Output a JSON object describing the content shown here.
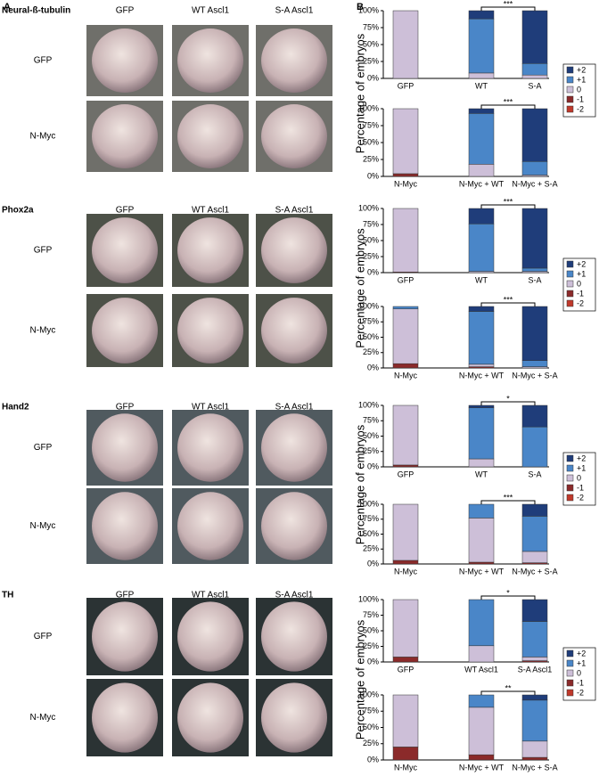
{
  "panel_a": {
    "label": "A",
    "sections": [
      {
        "title": "Neural-ß-tubulin",
        "columns": [
          "GFP",
          "WT Ascl1",
          "S-A Ascl1"
        ],
        "rows": [
          "GFP",
          "N-Myc"
        ]
      },
      {
        "title": "Phox2a",
        "columns": [
          "GFP",
          "WT Ascl1",
          "S-A Ascl1"
        ],
        "rows": [
          "GFP",
          "N-Myc"
        ]
      },
      {
        "title": "Hand2",
        "columns": [
          "GFP",
          "WT Ascl1",
          "S-A Ascl1"
        ],
        "rows": [
          "GFP",
          "N-Myc"
        ]
      },
      {
        "title": "TH",
        "columns": [
          "GFP",
          "WT Ascl1",
          "S-A Ascl1"
        ],
        "rows": [
          "GFP",
          "N-Myc"
        ]
      }
    ]
  },
  "panel_b": {
    "label": "B"
  },
  "chart_data": [
    {
      "type": "stacked-bar",
      "categories": [
        "GFP",
        "WT",
        "S-A"
      ],
      "ylabel": "Percentage of embryos",
      "annotation": "***",
      "legend": true,
      "ylim": [
        0,
        100
      ],
      "yticks": [
        {
          "value": 0,
          "label": "0%"
        },
        {
          "value": 25,
          "label": "25%"
        },
        {
          "value": 50,
          "label": "50%"
        },
        {
          "value": 75,
          "label": "75%"
        },
        {
          "value": 100,
          "label": "100%"
        }
      ],
      "series": [
        {
          "name": "-2",
          "color": "#c0392b",
          "values": [
            0,
            0,
            0
          ]
        },
        {
          "name": "-1",
          "color": "#8b2a2a",
          "values": [
            0,
            0,
            0
          ]
        },
        {
          "name": "0",
          "color": "#cdbfd8",
          "values": [
            100,
            8,
            5
          ]
        },
        {
          "name": "+1",
          "color": "#4a86c8",
          "values": [
            0,
            80,
            17
          ]
        },
        {
          "name": "+2",
          "color": "#1f3d7a",
          "values": [
            0,
            12,
            78
          ]
        }
      ]
    },
    {
      "type": "stacked-bar",
      "categories": [
        "N-Myc",
        "N-Myc + WT",
        "N-Myc + S-A"
      ],
      "annotation": "***",
      "ylim": [
        0,
        100
      ],
      "yticks": [
        {
          "value": 0,
          "label": "0%"
        },
        {
          "value": 25,
          "label": "25%"
        },
        {
          "value": 50,
          "label": "50%"
        },
        {
          "value": 75,
          "label": "75%"
        },
        {
          "value": 100,
          "label": "100%"
        }
      ],
      "series": [
        {
          "name": "-2",
          "color": "#c0392b",
          "values": [
            0,
            0,
            0
          ]
        },
        {
          "name": "-1",
          "color": "#8b2a2a",
          "values": [
            4,
            0,
            0
          ]
        },
        {
          "name": "0",
          "color": "#cdbfd8",
          "values": [
            96,
            18,
            2
          ]
        },
        {
          "name": "+1",
          "color": "#4a86c8",
          "values": [
            0,
            75,
            20
          ]
        },
        {
          "name": "+2",
          "color": "#1f3d7a",
          "values": [
            0,
            7,
            78
          ]
        }
      ]
    },
    {
      "type": "stacked-bar",
      "categories": [
        "GFP",
        "WT",
        "S-A"
      ],
      "ylabel": "Percentage of embryos",
      "annotation": "***",
      "legend": true,
      "ylim": [
        0,
        100
      ],
      "yticks": [
        {
          "value": 0,
          "label": "0%"
        },
        {
          "value": 25,
          "label": "25%"
        },
        {
          "value": 50,
          "label": "50%"
        },
        {
          "value": 75,
          "label": "75%"
        },
        {
          "value": 100,
          "label": "100%"
        }
      ],
      "series": [
        {
          "name": "-2",
          "color": "#c0392b",
          "values": [
            0,
            0,
            0
          ]
        },
        {
          "name": "-1",
          "color": "#8b2a2a",
          "values": [
            1,
            0,
            0
          ]
        },
        {
          "name": "0",
          "color": "#cdbfd8",
          "values": [
            99,
            2,
            2
          ]
        },
        {
          "name": "+1",
          "color": "#4a86c8",
          "values": [
            0,
            74,
            5
          ]
        },
        {
          "name": "+2",
          "color": "#1f3d7a",
          "values": [
            0,
            24,
            93
          ]
        }
      ]
    },
    {
      "type": "stacked-bar",
      "categories": [
        "N-Myc",
        "N-Myc + WT",
        "N-Myc + S-A"
      ],
      "annotation": "***",
      "ylim": [
        0,
        100
      ],
      "yticks": [
        {
          "value": 0,
          "label": "0%"
        },
        {
          "value": 25,
          "label": "25%"
        },
        {
          "value": 50,
          "label": "50%"
        },
        {
          "value": 75,
          "label": "75%"
        },
        {
          "value": 100,
          "label": "100%"
        }
      ],
      "series": [
        {
          "name": "-2",
          "color": "#c0392b",
          "values": [
            0,
            0,
            0
          ]
        },
        {
          "name": "-1",
          "color": "#8b2a2a",
          "values": [
            7,
            2,
            0
          ]
        },
        {
          "name": "0",
          "color": "#cdbfd8",
          "values": [
            89,
            4,
            2
          ]
        },
        {
          "name": "+1",
          "color": "#4a86c8",
          "values": [
            4,
            86,
            10
          ]
        },
        {
          "name": "+2",
          "color": "#1f3d7a",
          "values": [
            0,
            8,
            88
          ]
        }
      ]
    },
    {
      "type": "stacked-bar",
      "categories": [
        "GFP",
        "WT",
        "S-A"
      ],
      "ylabel": "Percentage of embryos",
      "annotation": "*",
      "legend": true,
      "ylim": [
        0,
        100
      ],
      "yticks": [
        {
          "value": 0,
          "label": "0%"
        },
        {
          "value": 25,
          "label": "25%"
        },
        {
          "value": 50,
          "label": "50%"
        },
        {
          "value": 75,
          "label": "75%"
        },
        {
          "value": 100,
          "label": "100%"
        }
      ],
      "series": [
        {
          "name": "-2",
          "color": "#c0392b",
          "values": [
            0,
            0,
            0
          ]
        },
        {
          "name": "-1",
          "color": "#8b2a2a",
          "values": [
            3,
            0,
            0
          ]
        },
        {
          "name": "0",
          "color": "#cdbfd8",
          "values": [
            97,
            13,
            0
          ]
        },
        {
          "name": "+1",
          "color": "#4a86c8",
          "values": [
            0,
            83,
            65
          ]
        },
        {
          "name": "+2",
          "color": "#1f3d7a",
          "values": [
            0,
            4,
            35
          ]
        }
      ]
    },
    {
      "type": "stacked-bar",
      "categories": [
        "N-Myc",
        "N-Myc + WT",
        "N-Myc + S-A"
      ],
      "annotation": "***",
      "ylim": [
        0,
        100
      ],
      "yticks": [
        {
          "value": 0,
          "label": "0%"
        },
        {
          "value": 25,
          "label": "25%"
        },
        {
          "value": 50,
          "label": "50%"
        },
        {
          "value": 75,
          "label": "75%"
        },
        {
          "value": 100,
          "label": "100%"
        }
      ],
      "series": [
        {
          "name": "-2",
          "color": "#c0392b",
          "values": [
            0,
            0,
            0
          ]
        },
        {
          "name": "-1",
          "color": "#8b2a2a",
          "values": [
            6,
            3,
            2
          ]
        },
        {
          "name": "0",
          "color": "#cdbfd8",
          "values": [
            94,
            74,
            19
          ]
        },
        {
          "name": "+1",
          "color": "#4a86c8",
          "values": [
            0,
            23,
            59
          ]
        },
        {
          "name": "+2",
          "color": "#1f3d7a",
          "values": [
            0,
            0,
            20
          ]
        }
      ]
    },
    {
      "type": "stacked-bar",
      "categories": [
        "GFP",
        "WT Ascl1",
        "S-A Ascl1"
      ],
      "ylabel": "Percentage of embryos",
      "annotation": "*",
      "legend": true,
      "ylim": [
        0,
        100
      ],
      "yticks": [
        {
          "value": 0,
          "label": "0%"
        },
        {
          "value": 25,
          "label": "25%"
        },
        {
          "value": 50,
          "label": "50%"
        },
        {
          "value": 75,
          "label": "75%"
        },
        {
          "value": 100,
          "label": "100%"
        }
      ],
      "series": [
        {
          "name": "-2",
          "color": "#c0392b",
          "values": [
            0,
            0,
            0
          ]
        },
        {
          "name": "-1",
          "color": "#8b2a2a",
          "values": [
            8,
            0,
            2
          ]
        },
        {
          "name": "0",
          "color": "#cdbfd8",
          "values": [
            92,
            26,
            6
          ]
        },
        {
          "name": "+1",
          "color": "#4a86c8",
          "values": [
            0,
            74,
            57
          ]
        },
        {
          "name": "+2",
          "color": "#1f3d7a",
          "values": [
            0,
            0,
            35
          ]
        }
      ]
    },
    {
      "type": "stacked-bar",
      "categories": [
        "N-Myc",
        "N-Myc + WT",
        "N-Myc + S-A"
      ],
      "annotation": "**",
      "ylim": [
        0,
        100
      ],
      "yticks": [
        {
          "value": 0,
          "label": "0%"
        },
        {
          "value": 25,
          "label": "25%"
        },
        {
          "value": 50,
          "label": "50%"
        },
        {
          "value": 75,
          "label": "75%"
        },
        {
          "value": 100,
          "label": "100%"
        }
      ],
      "series": [
        {
          "name": "-2",
          "color": "#c0392b",
          "values": [
            0,
            0,
            0
          ]
        },
        {
          "name": "-1",
          "color": "#8b2a2a",
          "values": [
            20,
            8,
            4
          ]
        },
        {
          "name": "0",
          "color": "#cdbfd8",
          "values": [
            80,
            73,
            25
          ]
        },
        {
          "name": "+1",
          "color": "#4a86c8",
          "values": [
            0,
            19,
            63
          ]
        },
        {
          "name": "+2",
          "color": "#1f3d7a",
          "values": [
            0,
            0,
            8
          ]
        }
      ]
    }
  ]
}
